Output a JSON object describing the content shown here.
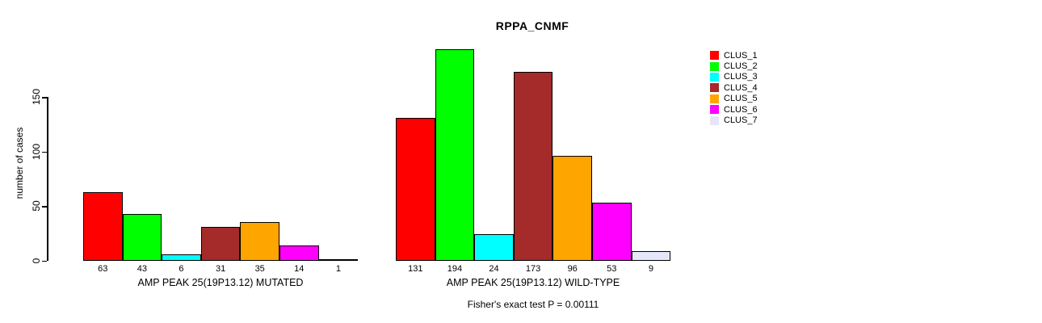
{
  "chart_data": {
    "type": "bar",
    "title": "RPPA_CNMF",
    "ylabel": "number of cases",
    "xlabel": "",
    "categories": [
      "CLUS_1",
      "CLUS_2",
      "CLUS_3",
      "CLUS_4",
      "CLUS_5",
      "CLUS_6",
      "CLUS_7"
    ],
    "colors": [
      "#FF0000",
      "#00FF00",
      "#00FFFF",
      "#A52A2A",
      "#FFA500",
      "#FF00FF",
      "#E6E6FA"
    ],
    "groups": [
      {
        "label": "AMP PEAK 25(19P13.12) MUTATED",
        "values": [
          63,
          43,
          6,
          31,
          35,
          14,
          1
        ]
      },
      {
        "label": "AMP PEAK 25(19P13.12) WILD-TYPE",
        "values": [
          131,
          194,
          24,
          173,
          96,
          53,
          9
        ]
      }
    ],
    "yticks": [
      0,
      50,
      100,
      150
    ],
    "ylim": [
      0,
      150
    ],
    "grid": false,
    "legend_position": "right",
    "annotation": "Fisher's exact test P = 0.00111"
  }
}
